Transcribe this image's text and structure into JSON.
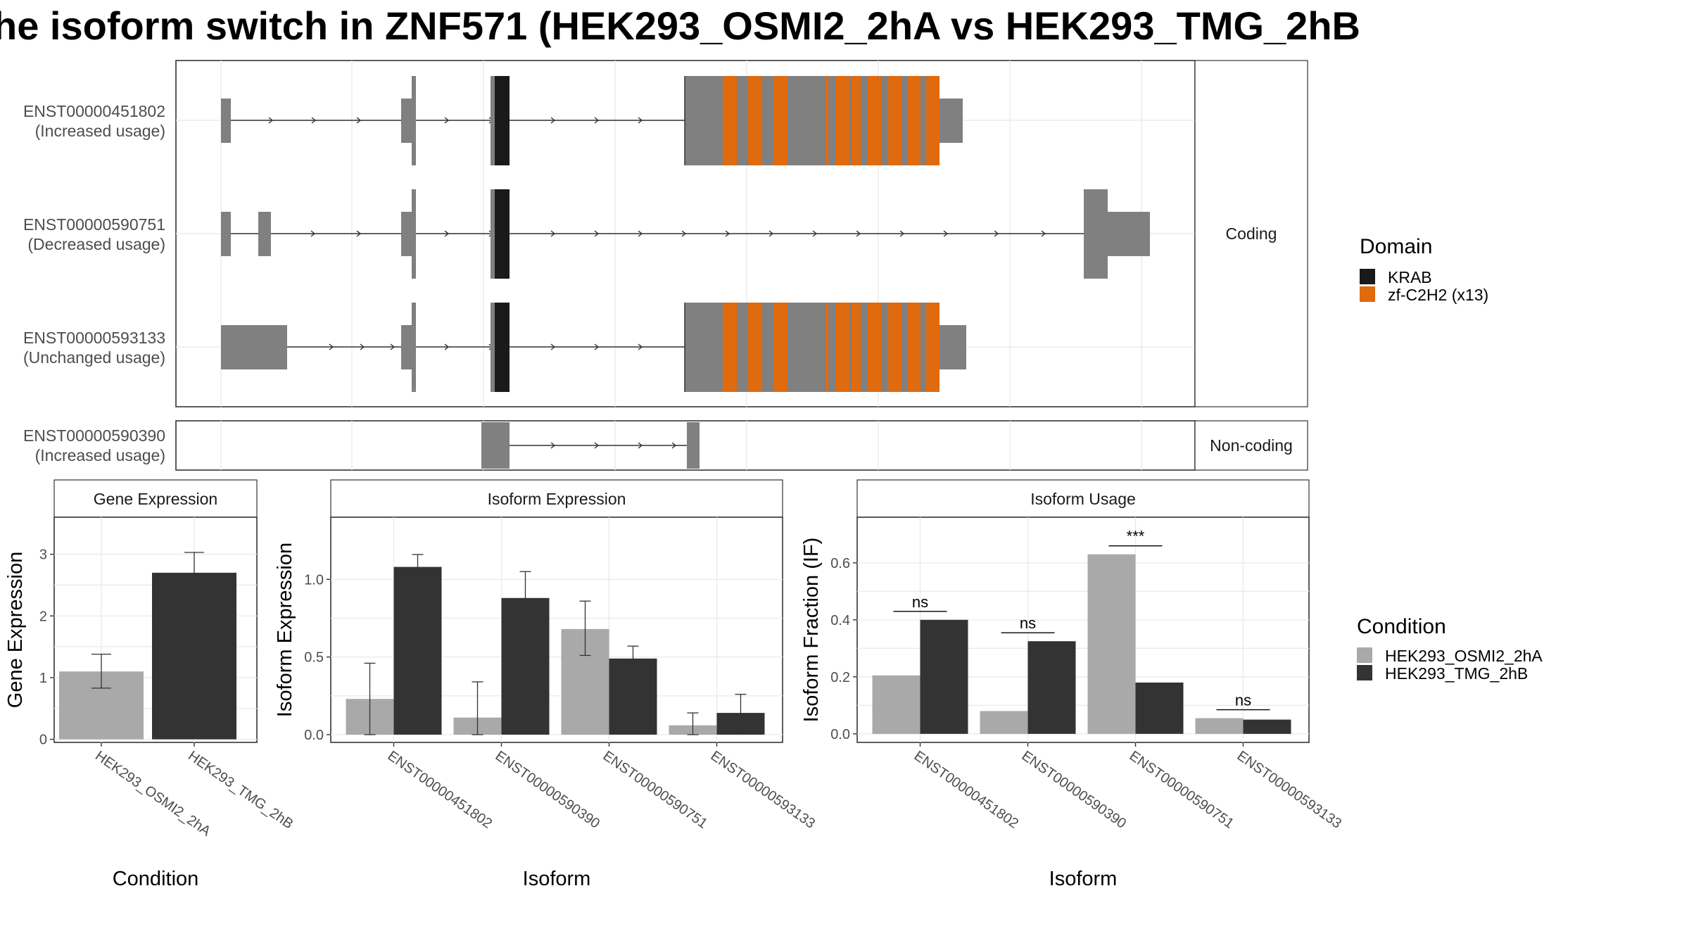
{
  "title": "he isoform switch in ZNF571 (HEK293_OSMI2_2hA vs HEK293_TMG_2hB",
  "colors": {
    "exon": "#808080",
    "krab": "#1a1a1a",
    "znf": "#e06a0e",
    "cond1": "#a9a9a9",
    "cond2": "#333333"
  },
  "structure": {
    "coding_strip": "Coding",
    "noncoding_strip": "Non-coding",
    "isoforms": [
      {
        "id": "ENST00000451802",
        "usage": "(Increased usage)",
        "group": "coding"
      },
      {
        "id": "ENST00000590751",
        "usage": "(Decreased usage)",
        "group": "coding"
      },
      {
        "id": "ENST00000593133",
        "usage": "(Unchanged usage)",
        "group": "coding"
      },
      {
        "id": "ENST00000590390",
        "usage": "(Increased usage)",
        "group": "noncoding"
      }
    ]
  },
  "domain_legend": {
    "title": "Domain",
    "items": [
      {
        "label": "KRAB",
        "color": "#1a1a1a"
      },
      {
        "label": "zf-C2H2 (x13)",
        "color": "#e06a0e"
      }
    ]
  },
  "condition_legend": {
    "title": "Condition",
    "items": [
      {
        "label": "HEK293_OSMI2_2hA",
        "color": "#a9a9a9"
      },
      {
        "label": "HEK293_TMG_2hB",
        "color": "#333333"
      }
    ]
  },
  "chart_data": [
    {
      "type": "bar",
      "panel": "Gene Expression",
      "categories": [
        "HEK293_OSMI2_2hA",
        "HEK293_TMG_2hB"
      ],
      "values": [
        1.1,
        2.7
      ],
      "errors": [
        [
          0.83,
          1.38
        ],
        [
          2.4,
          3.03
        ]
      ],
      "xlabel": "Condition",
      "ylabel": "Gene Expression",
      "ylim": [
        -0.05,
        3.6
      ],
      "yticks": [
        0,
        1,
        2,
        3
      ],
      "ytick_labels": [
        "0",
        "1",
        "2",
        "3"
      ]
    },
    {
      "type": "bar",
      "panel": "Isoform Expression",
      "categories": [
        "ENST00000451802",
        "ENST00000590390",
        "ENST00000590751",
        "ENST00000593133"
      ],
      "series": [
        {
          "name": "HEK293_OSMI2_2hA",
          "values": [
            0.23,
            0.11,
            0.68,
            0.06
          ],
          "errors": [
            [
              0.0,
              0.46
            ],
            [
              0.0,
              0.34
            ],
            [
              0.51,
              0.86
            ],
            [
              0.0,
              0.14
            ]
          ]
        },
        {
          "name": "HEK293_TMG_2hB",
          "values": [
            1.08,
            0.88,
            0.49,
            0.14
          ],
          "errors": [
            [
              1.01,
              1.16
            ],
            [
              0.72,
              1.05
            ],
            [
              0.4,
              0.57
            ],
            [
              0.02,
              0.26
            ]
          ]
        }
      ],
      "xlabel": "Isoform",
      "ylabel": "Isoform Expression",
      "ylim": [
        -0.05,
        1.4
      ],
      "yticks": [
        0,
        0.5,
        1.0
      ],
      "ytick_labels": [
        "0.0",
        "0.5",
        "1.0"
      ]
    },
    {
      "type": "bar",
      "panel": "Isoform Usage",
      "categories": [
        "ENST00000451802",
        "ENST00000590390",
        "ENST00000590751",
        "ENST00000593133"
      ],
      "series": [
        {
          "name": "HEK293_OSMI2_2hA",
          "values": [
            0.205,
            0.08,
            0.63,
            0.055
          ]
        },
        {
          "name": "HEK293_TMG_2hB",
          "values": [
            0.4,
            0.325,
            0.18,
            0.05
          ]
        }
      ],
      "significance": [
        "ns",
        "ns",
        "***",
        "ns"
      ],
      "xlabel": "Isoform",
      "ylabel": "Isoform Fraction (IF)",
      "ylim": [
        -0.03,
        0.76
      ],
      "yticks": [
        0,
        0.2,
        0.4,
        0.6
      ],
      "ytick_labels": [
        "0.0",
        "0.2",
        "0.4",
        "0.6"
      ]
    }
  ]
}
